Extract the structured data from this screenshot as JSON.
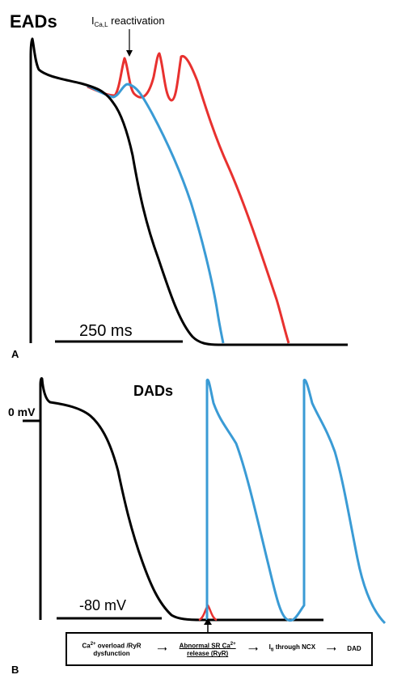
{
  "panel_a": {
    "title": "EADs",
    "annotation_main": "I",
    "annotation_sub": "Ca,L",
    "annotation_tail": " reactivation",
    "scale_label": "250 ms",
    "panel_letter": "A"
  },
  "panel_b": {
    "title": "DADs",
    "zero_label": "0 mV",
    "rest_label": "-80 mV",
    "panel_letter": "B",
    "flow": {
      "step1_line1": "Ca",
      "step1_sup": "2+",
      "step1_rest": " overload /RyR",
      "step1_line2": "dysfunction",
      "arrow1": "⟶",
      "step2_line1": "Abnormal SR Ca",
      "step2_sup": "2+",
      "step2_line2": "release (RyR)",
      "arrow2": "⟶",
      "step3_main": "I",
      "step3_sub": "ti",
      "step3_rest": " through NCX",
      "arrow3": "⟶",
      "step4": "DAD"
    }
  },
  "colors": {
    "baseline": "#000000",
    "ead_trace": "#e8312f",
    "mid_trace": "#3a9bd5",
    "dad_trace": "#3a9bd5",
    "dad_bump": "#e8312f"
  }
}
